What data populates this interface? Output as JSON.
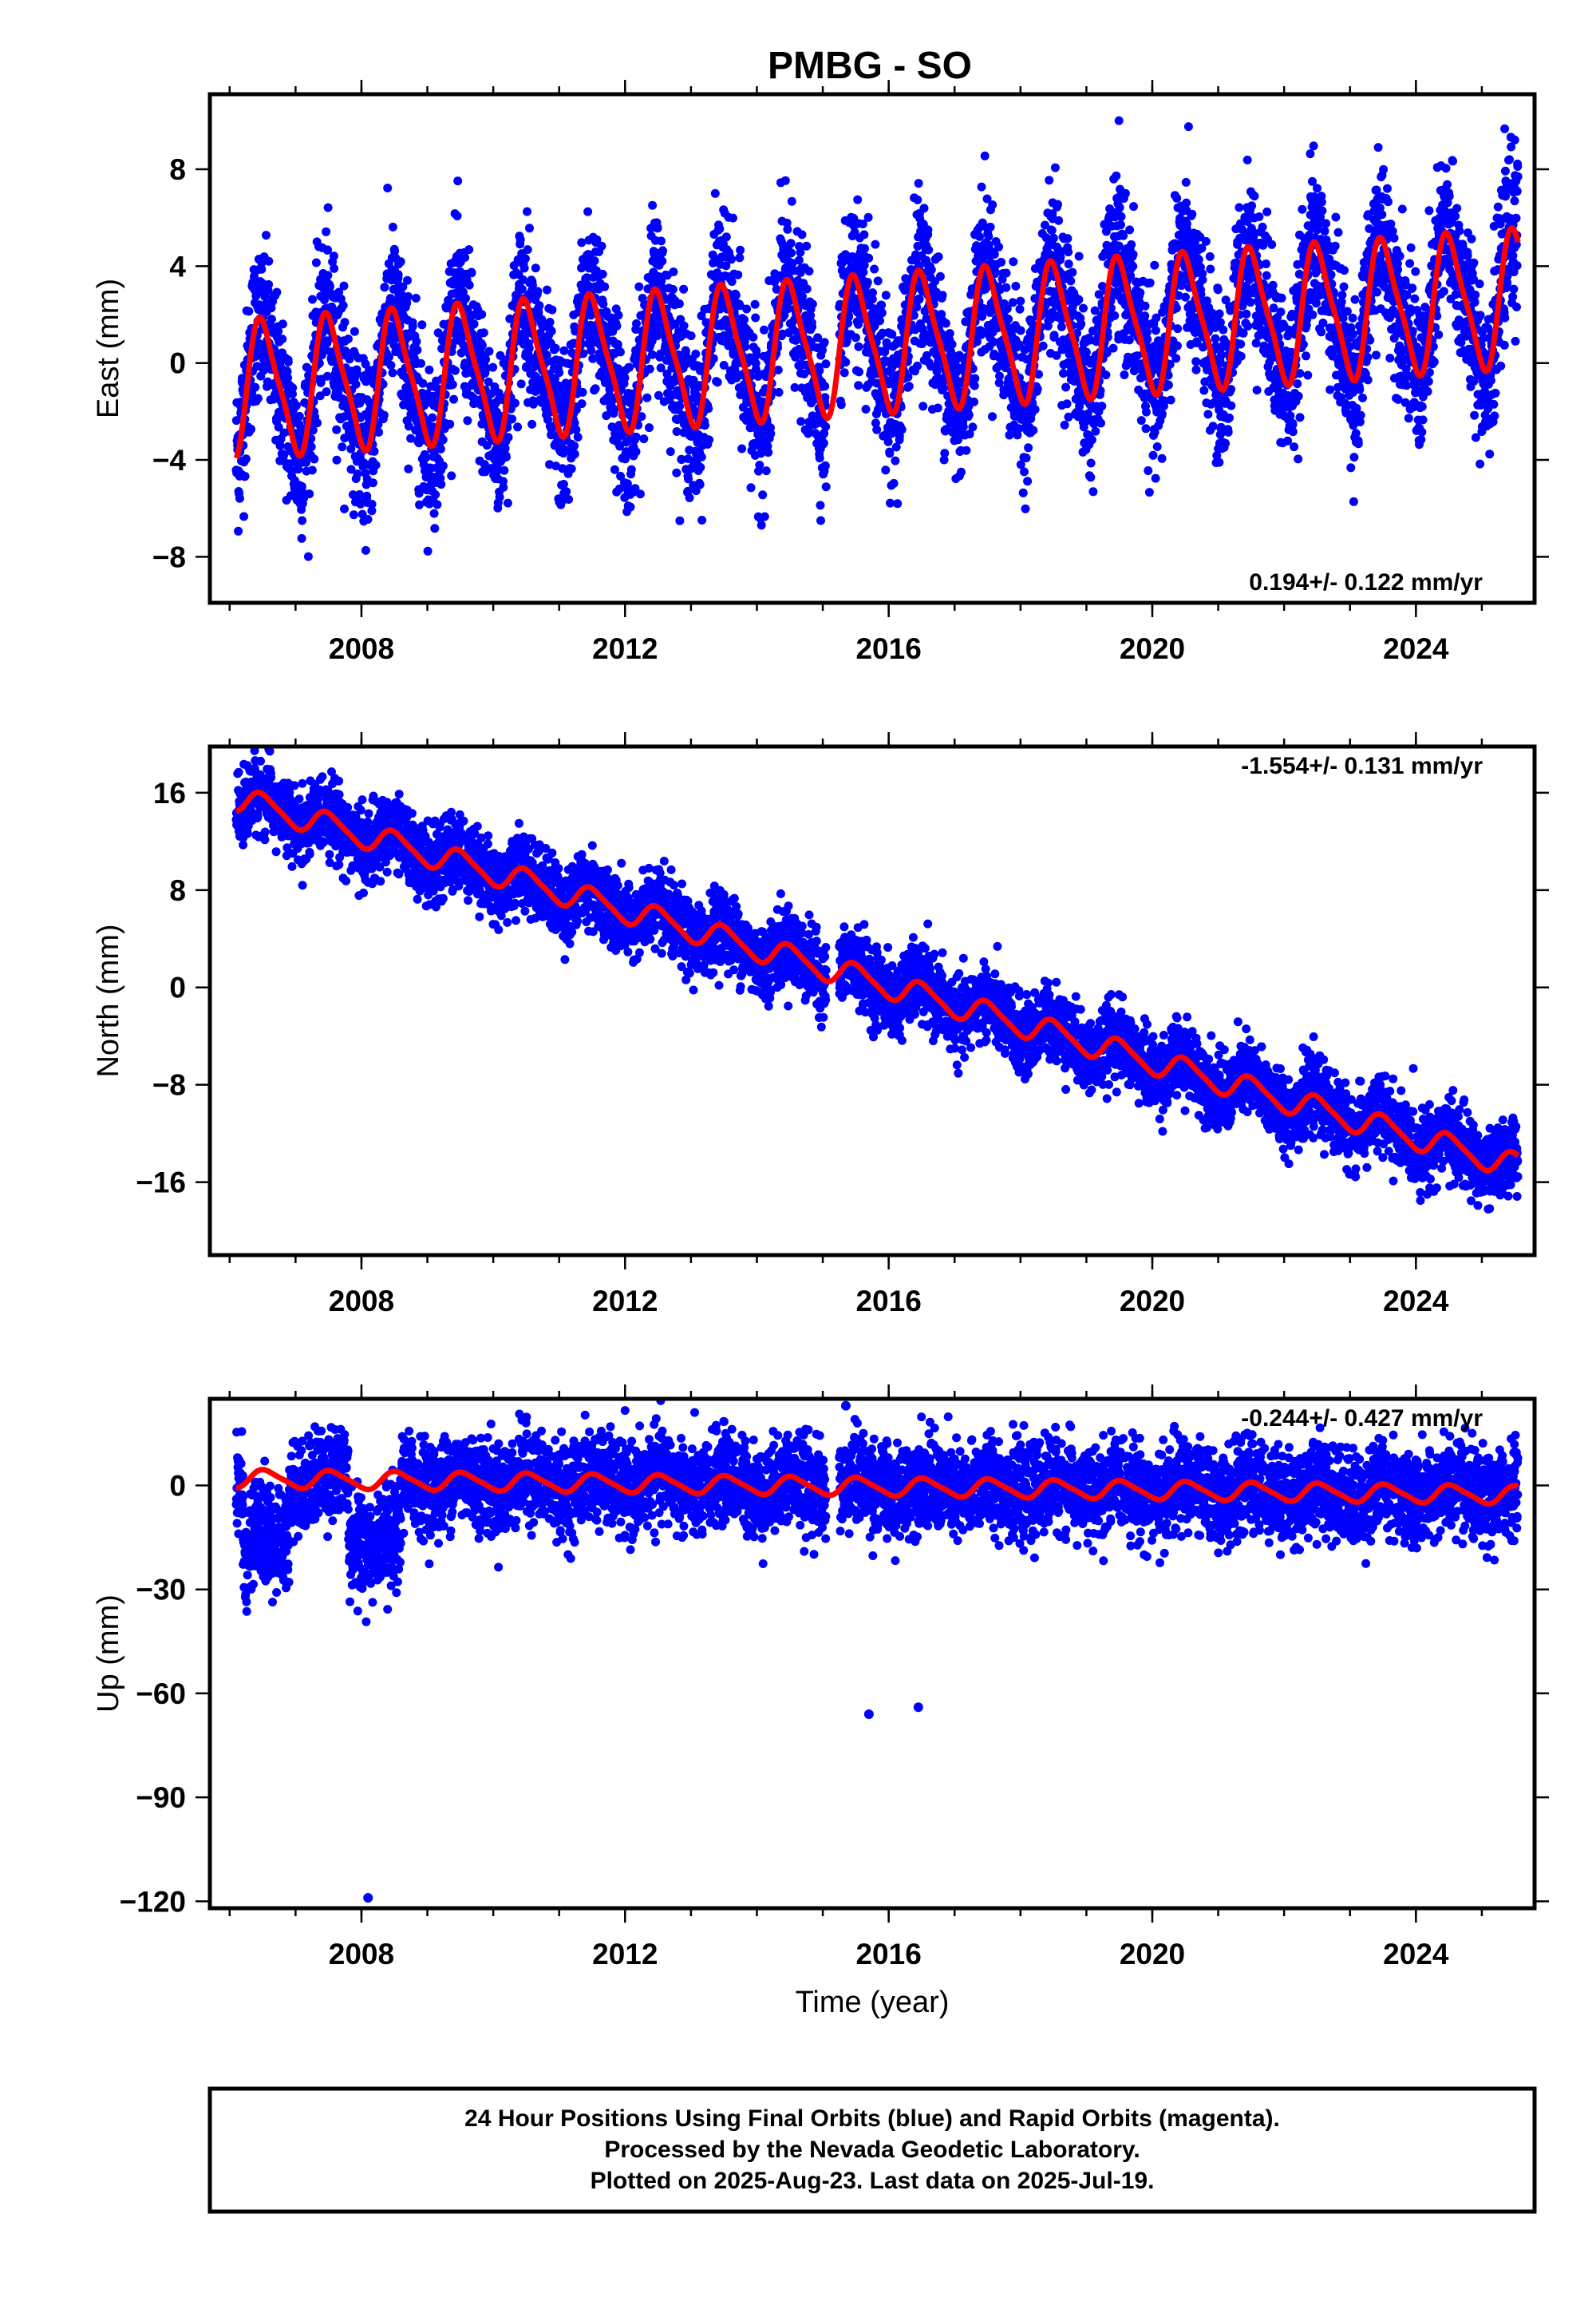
{
  "title": "PMBG - SO",
  "footer": {
    "lines": [
      "24 Hour Positions Using Final Orbits (blue) and Rapid Orbits (magenta).",
      "Processed by the Nevada Geodetic Laboratory.",
      "Plotted on 2025-Aug-23. Last data on 2025-Jul-19."
    ]
  },
  "colors": {
    "final_orbits": "#0000ff",
    "model": "#ff0000",
    "rapid_orbits": "#ff00ff"
  },
  "chart_data": [
    {
      "type": "scatter",
      "ylabel": "East (mm)",
      "xlabel": "",
      "rate_text": "0.194+/- 0.122 mm/yr",
      "xlim": [
        2005.7,
        2025.8
      ],
      "ylim": [
        -9.9,
        11.1
      ],
      "xticks": [
        2008,
        2012,
        2016,
        2020,
        2024
      ],
      "yticks": [
        8,
        4,
        0,
        -4,
        -8
      ],
      "ytick_labels": [
        "8",
        "4",
        "0",
        "−4",
        "−8"
      ],
      "series": [
        {
          "model": {
            "trend": 0.194,
            "offset": -1.1,
            "annual_amp": 2.7,
            "phase": 0.26,
            "semi_amp": 0.6,
            "t0": 2006.1,
            "t1": 2025.55
          }
        },
        {
          "scatter": {
            "spread": 1.6,
            "density_per_year": 320,
            "gaps": [
              [
                2015.05,
                2015.25
              ]
            ]
          }
        }
      ]
    },
    {
      "type": "scatter",
      "ylabel": "North (mm)",
      "xlabel": "",
      "rate_text": "-1.554+/- 0.131 mm/yr",
      "xlim": [
        2005.7,
        2025.8
      ],
      "ylim": [
        -22,
        19.8
      ],
      "xticks": [
        2008,
        2012,
        2016,
        2020,
        2024
      ],
      "yticks": [
        16,
        8,
        0,
        -8,
        -16
      ],
      "ytick_labels": [
        "16",
        "8",
        "0",
        "−8",
        "−16"
      ],
      "series": [
        {
          "model": {
            "trend": -1.554,
            "offset": 15.5,
            "annual_amp": 1.0,
            "phase": 0.26,
            "semi_amp": 0.2,
            "t0": 2006.1,
            "t1": 2025.55
          }
        },
        {
          "scatter": {
            "spread": 1.5,
            "density_per_year": 320,
            "gaps": [
              [
                2015.05,
                2015.25
              ]
            ]
          }
        }
      ]
    },
    {
      "type": "scatter",
      "ylabel": "Up (mm)",
      "xlabel": "Time (year)",
      "rate_text": "-0.244+/- 0.427 mm/yr",
      "xlim": [
        2005.7,
        2025.8
      ],
      "ylim": [
        -122,
        25
      ],
      "xticks": [
        2008,
        2012,
        2016,
        2020,
        2024
      ],
      "yticks": [
        0,
        -30,
        -60,
        -90,
        -120
      ],
      "ytick_labels": [
        "0",
        "−30",
        "−60",
        "−90",
        "−120"
      ],
      "series": [
        {
          "model": {
            "trend": -0.244,
            "offset": 2.0,
            "annual_amp": 2.5,
            "phase": 0.3,
            "semi_amp": 0.5,
            "t0": 2006.1,
            "t1": 2025.55
          }
        },
        {
          "scatter": {
            "spread": 6.5,
            "density_per_year": 320,
            "gaps": [
              [
                2015.05,
                2015.25
              ]
            ]
          }
        },
        {
          "outliers": [
            {
              "x": 2008.1,
              "y": -119
            },
            {
              "x": 2015.7,
              "y": -66
            },
            {
              "x": 2016.45,
              "y": -64
            },
            {
              "x": 2015.35,
              "y": 23
            }
          ]
        }
      ]
    }
  ]
}
